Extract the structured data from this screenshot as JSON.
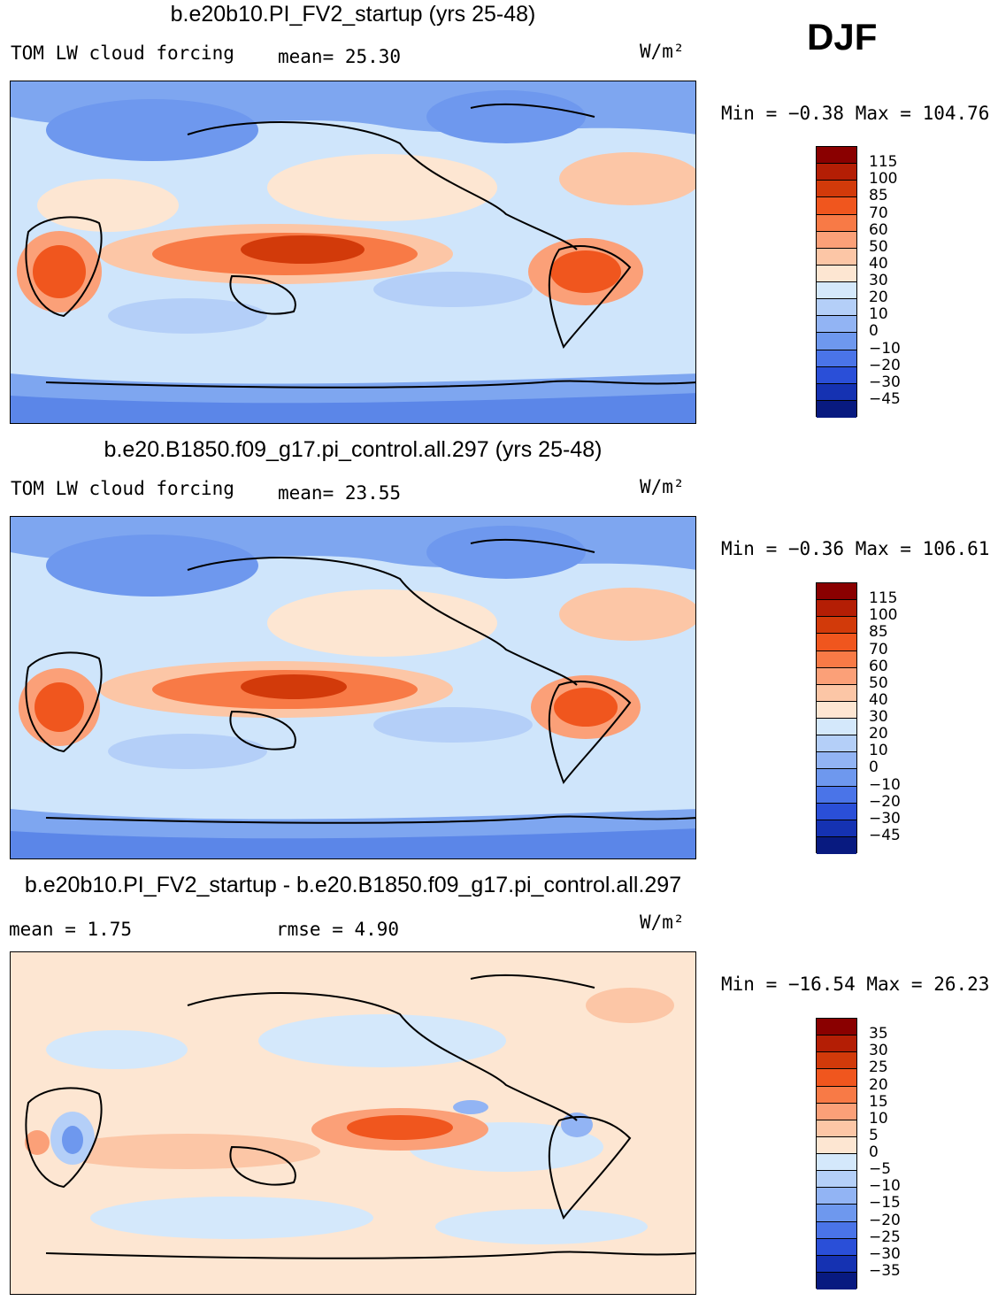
{
  "season": "DJF",
  "colors": {
    "ocean_base": "#cfe5fb",
    "coast": "#000000"
  },
  "panels": [
    {
      "title": "b.e20b10.PI_FV2_startup (yrs 25-48)",
      "left_label": "TOM LW cloud forcing",
      "mid_label": "mean=   25.30",
      "units": "W/m²",
      "minmax": "Min =  −0.38 Max = 104.76",
      "levels": [
        "115",
        "100",
        "85",
        "70",
        "60",
        "50",
        "40",
        "30",
        "20",
        "10",
        "0",
        "−10",
        "−20",
        "−30",
        "−45"
      ],
      "colors": [
        "#8a0000",
        "#b41e05",
        "#d23a0a",
        "#f0561e",
        "#f87a46",
        "#fba078",
        "#fcc6a6",
        "#fde6d2",
        "#d4e8fb",
        "#b4cff8",
        "#92b4f4",
        "#6e98ee",
        "#4a74e8",
        "#2a4fd8",
        "#1532b2",
        "#081a80"
      ]
    },
    {
      "title": "b.e20.B1850.f09_g17.pi_control.all.297 (yrs 25-48)",
      "left_label": "TOM LW cloud forcing",
      "mid_label": "mean=   23.55",
      "units": "W/m²",
      "minmax": "Min =  −0.36 Max = 106.61",
      "levels": [
        "115",
        "100",
        "85",
        "70",
        "60",
        "50",
        "40",
        "30",
        "20",
        "10",
        "0",
        "−10",
        "−20",
        "−30",
        "−45"
      ],
      "colors": [
        "#8a0000",
        "#b41e05",
        "#d23a0a",
        "#f0561e",
        "#f87a46",
        "#fba078",
        "#fcc6a6",
        "#fde6d2",
        "#d4e8fb",
        "#b4cff8",
        "#92b4f4",
        "#6e98ee",
        "#4a74e8",
        "#2a4fd8",
        "#1532b2",
        "#081a80"
      ]
    },
    {
      "title": "b.e20b10.PI_FV2_startup - b.e20.B1850.f09_g17.pi_control.all.297",
      "left_label": "mean =    1.75",
      "mid_label": "rmse =    4.90",
      "units": "W/m²",
      "minmax": "Min = −16.54 Max =  26.23",
      "levels": [
        "35",
        "30",
        "25",
        "20",
        "15",
        "10",
        "5",
        "0",
        "−5",
        "−10",
        "−15",
        "−20",
        "−25",
        "−30",
        "−35"
      ],
      "colors": [
        "#8a0000",
        "#b41e05",
        "#d23a0a",
        "#f0561e",
        "#f87a46",
        "#fba078",
        "#fcc6a6",
        "#fde6d2",
        "#d4e8fb",
        "#b4cff8",
        "#92b4f4",
        "#6e98ee",
        "#4a74e8",
        "#2a4fd8",
        "#1532b2",
        "#081a80"
      ]
    }
  ]
}
